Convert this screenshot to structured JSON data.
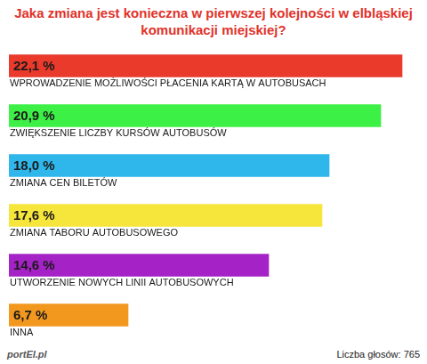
{
  "chart_data": {
    "type": "bar",
    "title": "Jaka zmiana jest konieczna w pierwszej kolejności w elbląskiej komunikacji miejskiej?",
    "categories": [
      "WPROWADZENIE MOŻLIWOŚCI PŁACENIA KARTĄ W AUTOBUSACH",
      "ZWIĘKSZENIE LICZBY KURSÓW AUTOBUSÓW",
      "ZMIANA CEN BILETÓW",
      "ZMIANA TABORU AUTOBUSOWEGO",
      "UTWORZENIE NOWYCH LINII AUTOBUSOWYCH",
      "INNA"
    ],
    "values": [
      22.1,
      20.9,
      18.0,
      17.6,
      14.6,
      6.7
    ],
    "value_labels": [
      "22,1 %",
      "20,9 %",
      "18,0 %",
      "17,6 %",
      "14,6 %",
      "6,7 %"
    ],
    "colors": [
      "#ea3a2c",
      "#3df046",
      "#2fb6ea",
      "#f6e63c",
      "#a523c6",
      "#f3981f"
    ],
    "orientation": "horizontal",
    "data_labels": true,
    "tick_labels": false,
    "grid": false,
    "xlim": [
      0,
      23
    ],
    "annotations": [
      "Liczba głosów: 765",
      "portEl.pl"
    ]
  }
}
